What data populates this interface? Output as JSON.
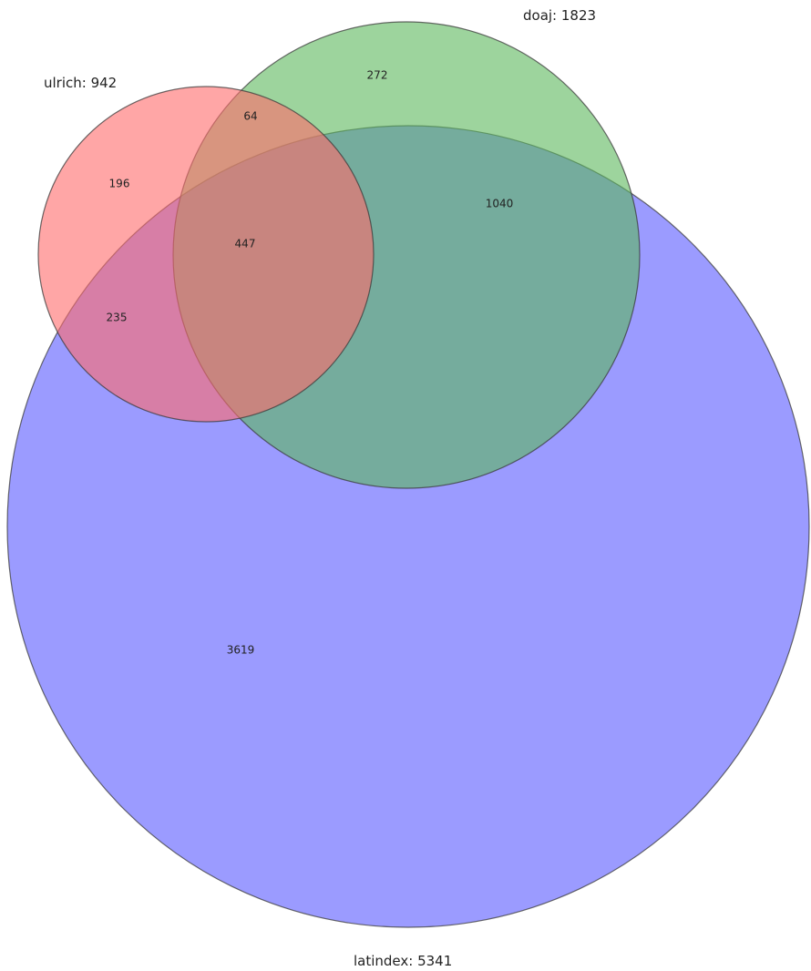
{
  "diagram": {
    "type": "venn3",
    "sets": [
      {
        "key": "ulrich",
        "label": "ulrich: 942",
        "color": "#ff6b6b"
      },
      {
        "key": "doaj",
        "label": "doaj: 1823",
        "color": "#5cb85c"
      },
      {
        "key": "latindex",
        "label": "latindex: 5341",
        "color": "#6b6bff"
      }
    ],
    "regions": {
      "ulrich_only": "196",
      "doaj_only": "272",
      "latindex_only": "3619",
      "ulrich_doaj": "64",
      "ulrich_latindex": "235",
      "doaj_latindex": "1040",
      "all_three": "447"
    }
  }
}
